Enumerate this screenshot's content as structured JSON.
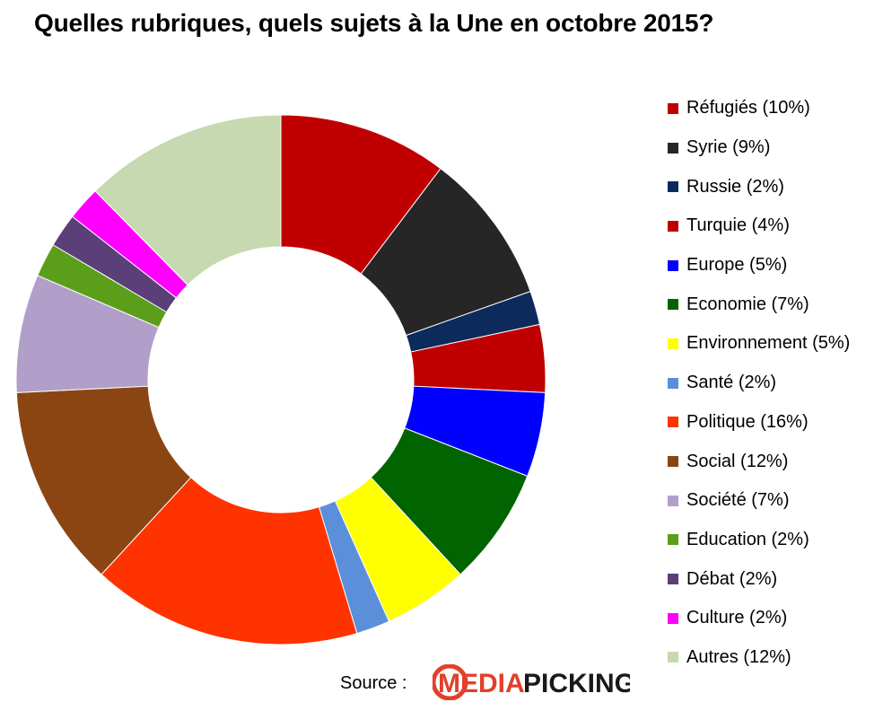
{
  "title": "Quelles rubriques, quels sujets à la Une en octobre 2015?",
  "chart_data": {
    "type": "pie",
    "variant": "donut",
    "title": "Quelles rubriques, quels sujets à la Une en octobre 2015?",
    "legend_position": "right",
    "categories": [
      "Réfugiés",
      "Syrie",
      "Russie",
      "Turquie",
      "Europe",
      "Economie",
      "Environnement",
      "Santé",
      "Politique",
      "Social",
      "Société",
      "Education",
      "Débat",
      "Culture",
      "Autres"
    ],
    "values": [
      10,
      9,
      2,
      4,
      5,
      7,
      5,
      2,
      16,
      12,
      7,
      2,
      2,
      2,
      12
    ],
    "labels": [
      "Réfugiés (10%)",
      "Syrie (9%)",
      "Russie (2%)",
      "Turquie (4%)",
      "Europe (5%)",
      "Economie (7%)",
      "Environnement (5%)",
      "Santé (2%)",
      "Politique (16%)",
      "Social (12%)",
      "Société (7%)",
      "Education (2%)",
      "Débat (2%)",
      "Culture (2%)",
      "Autres (12%)"
    ],
    "colors": [
      "#c00000",
      "#262626",
      "#0d2a5c",
      "#c00000",
      "#0000ff",
      "#006400",
      "#ffff00",
      "#5b8fd9",
      "#ff3300",
      "#8b4513",
      "#b19fc9",
      "#5a9e1a",
      "#5b3f78",
      "#ff00ff",
      "#c6d9b0"
    ]
  },
  "source": {
    "label": "Source :",
    "logo_text_1": "MEDIA",
    "logo_text_2": "PICKING",
    "logo_colors": {
      "media": "#e2402a",
      "picking": "#1a1a1a"
    }
  }
}
